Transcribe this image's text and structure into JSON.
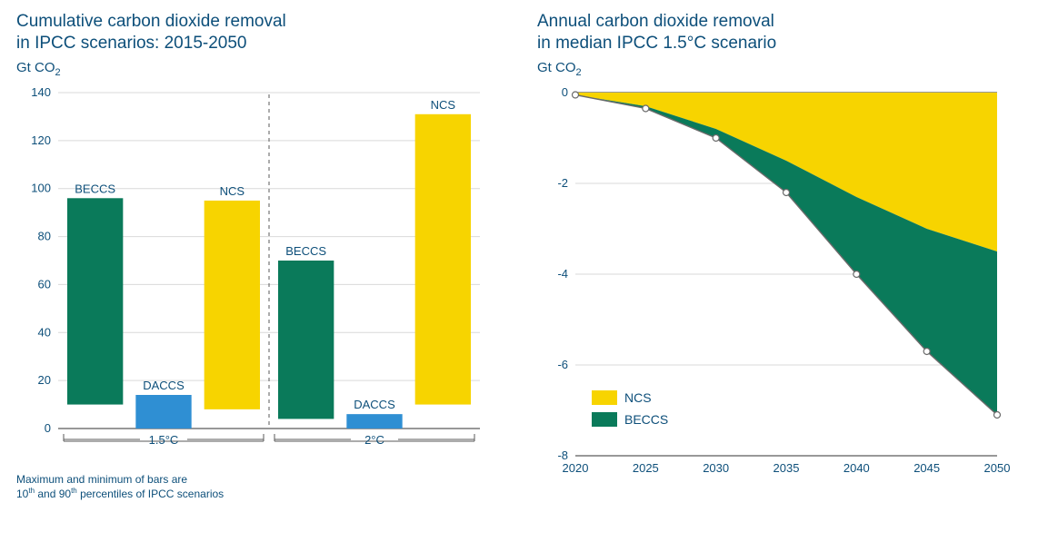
{
  "colors": {
    "title": "#0d4f7a",
    "axis": "#5a5a5a",
    "grid": "#d9d9d9",
    "beccs": "#0a7a5a",
    "daccs": "#2f8fd3",
    "ncs": "#f7d400",
    "area_marker": "#ffffff",
    "area_edge": "#6a6a6a"
  },
  "left": {
    "title1": "Cumulative carbon dioxide removal",
    "title2": "in IPCC scenarios: 2015-2050",
    "ylabel": "Gt CO",
    "ylim": [
      0,
      140
    ],
    "yticks": [
      0,
      20,
      40,
      60,
      80,
      100,
      120,
      140
    ],
    "groups": [
      {
        "label": "1.5°C",
        "bars": [
          {
            "name": "BECCS",
            "low": 10,
            "high": 96,
            "color": "beccs"
          },
          {
            "name": "DACCS",
            "low": 0,
            "high": 14,
            "color": "daccs"
          },
          {
            "name": "NCS",
            "low": 8,
            "high": 95,
            "color": "ncs"
          }
        ]
      },
      {
        "label": "2°C",
        "bars": [
          {
            "name": "BECCS",
            "low": 4,
            "high": 70,
            "color": "beccs"
          },
          {
            "name": "DACCS",
            "low": 0,
            "high": 6,
            "color": "daccs"
          },
          {
            "name": "NCS",
            "low": 10,
            "high": 131,
            "color": "ncs"
          }
        ]
      }
    ],
    "footnote1": "Maximum and minimum of bars are",
    "footnote2_a": "10",
    "footnote2_b": " and 90",
    "footnote2_c": " percentiles of IPCC scenarios"
  },
  "right": {
    "title1": "Annual carbon dioxide removal",
    "title2": "in median IPCC 1.5°C scenario",
    "ylabel": "Gt CO",
    "ylim": [
      -8,
      0
    ],
    "yticks": [
      0,
      -2,
      -4,
      -6,
      -8
    ],
    "xticks": [
      2020,
      2025,
      2030,
      2035,
      2040,
      2045,
      2050
    ],
    "ncs_line": [
      -0.05,
      -0.3,
      -0.8,
      -1.5,
      -2.3,
      -3.0,
      -3.5
    ],
    "total_line": [
      -0.05,
      -0.35,
      -1.0,
      -2.2,
      -4.0,
      -5.7,
      -7.1
    ],
    "legend": [
      {
        "label": "NCS",
        "color": "ncs"
      },
      {
        "label": "BECCS",
        "color": "beccs"
      }
    ]
  }
}
